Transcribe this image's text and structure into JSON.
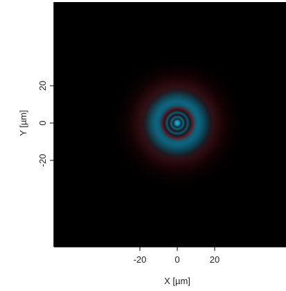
{
  "chart_data": {
    "type": "heatmap",
    "title": "",
    "xlabel": "X [µm]",
    "ylabel": "Y [µm]",
    "xlim": [
      -36,
      36
    ],
    "ylim": [
      -36,
      36
    ],
    "x_ticks": [
      {
        "value": -20,
        "label": "-20"
      },
      {
        "value": 0,
        "label": "0"
      },
      {
        "value": 20,
        "label": "20"
      }
    ],
    "y_ticks": [
      {
        "value": 20,
        "label": "20"
      },
      {
        "value": 0,
        "label": "0"
      },
      {
        "value": -20,
        "label": "-20"
      }
    ],
    "grid": false,
    "colors": {
      "background": "#000000",
      "cyan": "#1ab8e6",
      "red": "#e21e2e"
    },
    "pattern": {
      "description_free": true,
      "center": [
        0,
        0
      ],
      "ring_profile": [
        {
          "r": 0,
          "cyan": 1.0,
          "red": 0.0
        },
        {
          "r": 1.2,
          "cyan": 0.75,
          "red": 0.0
        },
        {
          "r": 2.2,
          "cyan": 0.2,
          "red": 0.06
        },
        {
          "r": 3.2,
          "cyan": 0.55,
          "red": 0.0
        },
        {
          "r": 4.4,
          "cyan": 0.08,
          "red": 0.12
        },
        {
          "r": 5.6,
          "cyan": 0.48,
          "red": 0.0
        },
        {
          "r": 6.8,
          "cyan": 0.1,
          "red": 0.12
        },
        {
          "r": 8.2,
          "cyan": 0.12,
          "red": 0.38
        },
        {
          "r": 9.6,
          "cyan": 0.5,
          "red": 0.0
        },
        {
          "r": 11.5,
          "cyan": 0.55,
          "red": 0.0
        },
        {
          "r": 13.5,
          "cyan": 0.45,
          "red": 0.0
        },
        {
          "r": 15.5,
          "cyan": 0.3,
          "red": 0.04
        },
        {
          "r": 17.5,
          "cyan": 0.12,
          "red": 0.12
        },
        {
          "r": 19.5,
          "cyan": 0.05,
          "red": 0.2
        },
        {
          "r": 22.0,
          "cyan": 0.02,
          "red": 0.16
        },
        {
          "r": 25.0,
          "cyan": 0.0,
          "red": 0.1
        },
        {
          "r": 28.0,
          "cyan": 0.0,
          "red": 0.05
        },
        {
          "r": 32.0,
          "cyan": 0.0,
          "red": 0.02
        },
        {
          "r": 36.0,
          "cyan": 0.0,
          "red": 0.0
        }
      ]
    }
  }
}
